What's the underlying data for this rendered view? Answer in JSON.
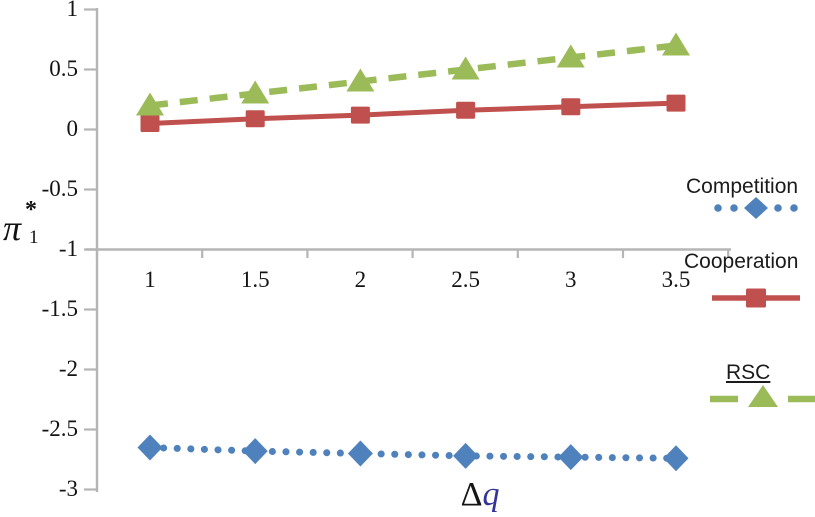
{
  "figure": {
    "background": "#ffffff",
    "axis_color": "#b5b5b5",
    "text_color": "#141414"
  },
  "y_axis": {
    "title_symbol": "π",
    "title_subscript": "1",
    "title_superscript": "*",
    "tick_labels": [
      "1",
      "0.5",
      "0",
      "-0.5",
      "-1",
      "-1.5",
      "-2",
      "-2.5",
      "-3"
    ],
    "tick_values": [
      1,
      0.5,
      0,
      -0.5,
      -1,
      -1.5,
      -2,
      -2.5,
      -3
    ]
  },
  "x_axis": {
    "title_delta": "Δ",
    "title_var": "q",
    "title_var_color": "#333399",
    "tick_labels": [
      "1",
      "1.5",
      "2",
      "2.5",
      "3",
      "3.5"
    ],
    "tick_values": [
      1,
      1.5,
      2,
      2.5,
      3,
      3.5
    ]
  },
  "chart_data": {
    "type": "line",
    "x": [
      1,
      1.5,
      2,
      2.5,
      3,
      3.5
    ],
    "xlabel": "Δq",
    "ylabel": "π1*",
    "xlim": [
      1,
      3.5
    ],
    "ylim": [
      -3,
      1
    ],
    "grid": false,
    "x_axis_crosses_at_y": -1,
    "legend_position": "right",
    "series": [
      {
        "name": "Competition",
        "color": "#4f81bd",
        "line_style": "dotted",
        "marker": "diamond",
        "values": [
          -2.65,
          -2.68,
          -2.7,
          -2.72,
          -2.73,
          -2.74
        ]
      },
      {
        "name": "Cooperation",
        "color": "#c0504d",
        "line_style": "solid",
        "marker": "square",
        "values": [
          0.05,
          0.09,
          0.12,
          0.16,
          0.19,
          0.22
        ]
      },
      {
        "name": "RSC",
        "color": "#9bbb59",
        "line_style": "dashed",
        "marker": "triangle",
        "values": [
          0.2,
          0.3,
          0.4,
          0.5,
          0.6,
          0.7
        ],
        "label_underlined": true
      }
    ]
  }
}
